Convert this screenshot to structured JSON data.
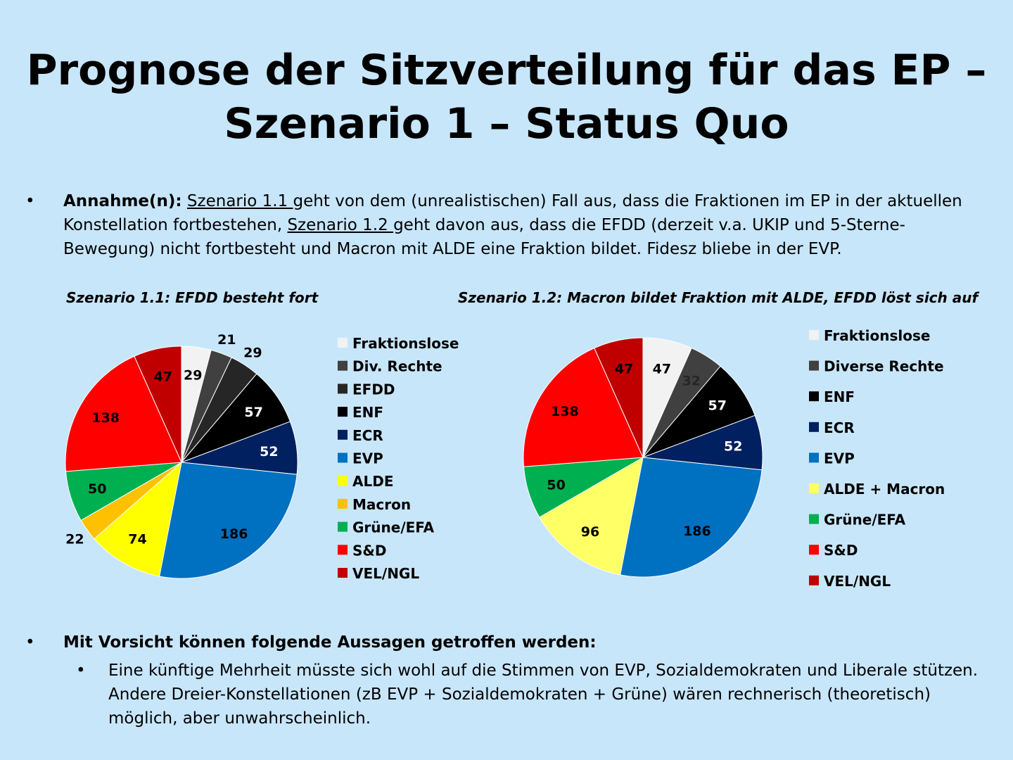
{
  "title_line1": "Prognose der Sitzverteilung für das EP –",
  "title_line2": "Szenario 1 – Status Quo",
  "bullet1": {
    "marker": "•",
    "bold": "Annahme(n):",
    "link1": "Szenario 1.1 ",
    "text1": "geht von dem (unrealistischen) Fall aus, dass die Fraktionen im EP in der aktuellen Konstellation fortbestehen,",
    "link2": "Szenario 1.2 ",
    "text2": "geht davon aus, dass die EFDD (derzeit v.a. UKIP und 5-Sterne-Bewegung) nicht fortbesteht und Macron mit ALDE eine Fraktion bildet. Fidesz bliebe in der EVP."
  },
  "bullet2": {
    "marker": "•",
    "bold": "Mit Vorsicht können folgende Aussagen getroffen werden:",
    "sub_marker": "•",
    "sub_text": "Eine künftige Mehrheit müsste sich wohl auf die Stimmen von EVP, Sozialdemokraten und Liberale stützen. Andere Dreier-Konstellationen (zB EVP + Sozialdemokraten + Grüne) wären rechnerisch (theoretisch) möglich, aber unwahrscheinlich."
  },
  "chart_data": [
    {
      "type": "pie",
      "title": "Szenario 1.1: EFDD besteht fort",
      "labels": [
        "Fraktionslose",
        "Div. Rechte",
        "EFDD",
        "ENF",
        "ECR",
        "EVP",
        "ALDE",
        "Macron",
        "Grüne/EFA",
        "S&D",
        "VEL/NGL"
      ],
      "values": [
        29,
        21,
        29,
        57,
        52,
        186,
        74,
        22,
        50,
        138,
        47
      ],
      "colors": [
        "#f2f2f2",
        "#404040",
        "#262626",
        "#000000",
        "#002060",
        "#0070c0",
        "#ffff00",
        "#ffc000",
        "#00b050",
        "#ff0000",
        "#c00000"
      ],
      "label_colors": [
        "#000000",
        "#000000",
        "#000000",
        "#ffffff",
        "#ffffff",
        "#000000",
        "#000000",
        "#000000",
        "#000000",
        "#000000",
        "#000000"
      ],
      "label_outside": [
        false,
        true,
        true,
        false,
        false,
        false,
        false,
        true,
        false,
        false,
        false
      ]
    },
    {
      "type": "pie",
      "title": "Szenario 1.2: Macron bildet Fraktion mit ALDE, EFDD löst sich auf",
      "labels": [
        "Fraktionslose",
        "Diverse Rechte",
        "ENF",
        "ECR",
        "EVP",
        "ALDE + Macron",
        "Grüne/EFA",
        "S&D",
        "VEL/NGL"
      ],
      "values": [
        47,
        32,
        57,
        52,
        186,
        96,
        50,
        138,
        47
      ],
      "colors": [
        "#f2f2f2",
        "#404040",
        "#000000",
        "#002060",
        "#0070c0",
        "#ffff66",
        "#00b050",
        "#ff0000",
        "#c00000"
      ],
      "label_colors": [
        "#000000",
        "#262626",
        "#ffffff",
        "#ffffff",
        "#000000",
        "#000000",
        "#000000",
        "#000000",
        "#000000"
      ],
      "label_outside": [
        false,
        false,
        false,
        false,
        false,
        false,
        false,
        false,
        false
      ]
    }
  ]
}
